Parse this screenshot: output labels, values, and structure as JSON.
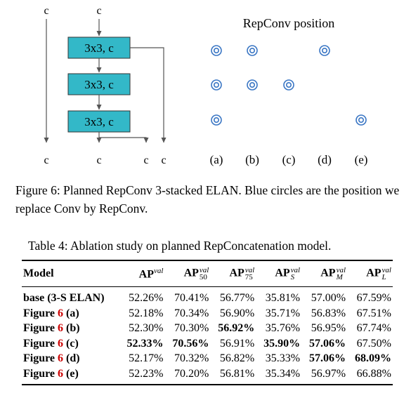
{
  "figure": {
    "labels": {
      "c": "c",
      "block_label": "3x3, c",
      "repconv_position": "RepConv position"
    },
    "variants": [
      "(a)",
      "(b)",
      "(c)",
      "(d)",
      "(e)"
    ],
    "repconv_circles": {
      "(a)": [
        1,
        2,
        3
      ],
      "(b)": [
        1,
        2
      ],
      "(c)": [
        2
      ],
      "(d)": [
        1
      ],
      "(e)": [
        3
      ]
    },
    "colors": {
      "block_fill": "#33b8c8",
      "circle": "#3a76c4"
    },
    "caption": "Figure 6: Planned RepConv 3-stacked ELAN. Blue circles are the position we replace Conv by RepConv."
  },
  "table": {
    "caption": "Table 4: Ablation study on planned RepConcatenation model.",
    "header": {
      "model": "Model",
      "ap": "AP",
      "val": "val",
      "sub50": "50",
      "sub75": "75",
      "subS": "S",
      "subM": "M",
      "subL": "L"
    },
    "rows": [
      {
        "model": "base (3-S ELAN)",
        "ref": "",
        "suffix": "",
        "values": [
          "52.26%",
          "70.41%",
          "56.77%",
          "35.81%",
          "57.00%",
          "67.59%"
        ]
      },
      {
        "model": "Figure ",
        "ref": "6",
        "suffix": " (a)",
        "values": [
          "52.18%",
          "70.34%",
          "56.90%",
          "35.71%",
          "56.83%",
          "67.51%"
        ]
      },
      {
        "model": "Figure ",
        "ref": "6",
        "suffix": " (b)",
        "values": [
          "52.30%",
          "70.30%",
          "56.92%",
          "35.76%",
          "56.95%",
          "67.74%"
        ]
      },
      {
        "model": "Figure ",
        "ref": "6",
        "suffix": " (c)",
        "values": [
          "52.33%",
          "70.56%",
          "56.91%",
          "35.90%",
          "57.06%",
          "67.50%"
        ]
      },
      {
        "model": "Figure ",
        "ref": "6",
        "suffix": " (d)",
        "values": [
          "52.17%",
          "70.32%",
          "56.82%",
          "35.33%",
          "57.06%",
          "68.09%"
        ]
      },
      {
        "model": "Figure ",
        "ref": "6",
        "suffix": " (e)",
        "values": [
          "52.23%",
          "70.20%",
          "56.81%",
          "35.34%",
          "56.97%",
          "66.88%"
        ]
      }
    ],
    "bold_cells": [
      [
        2,
        2
      ],
      [
        3,
        0
      ],
      [
        3,
        1
      ],
      [
        3,
        3
      ],
      [
        3,
        4
      ],
      [
        4,
        4
      ],
      [
        4,
        5
      ]
    ]
  }
}
